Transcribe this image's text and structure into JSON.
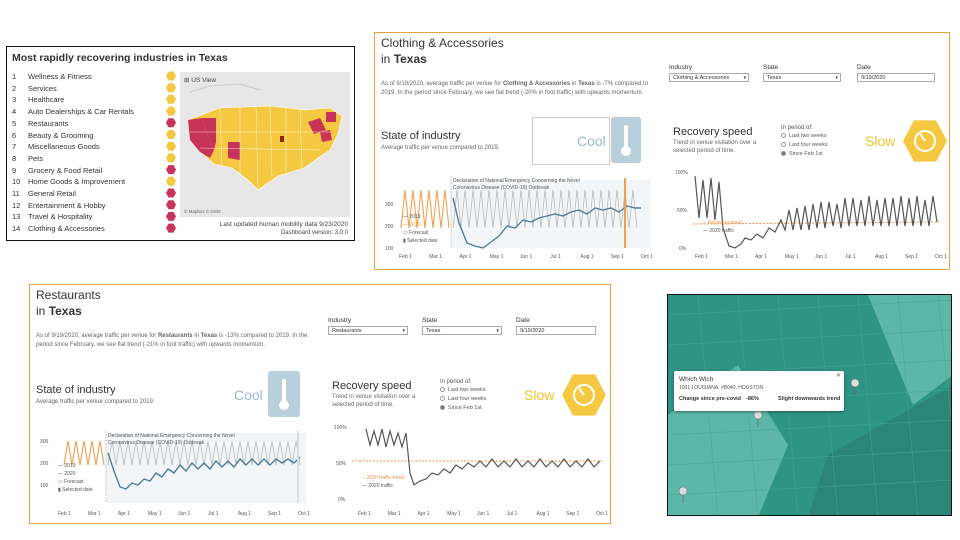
{
  "rank_panel": {
    "title": "Most rapidly recovering industries in Texas",
    "items": [
      {
        "rank": "1",
        "label": "Wellness & Fitness",
        "status": "yellow"
      },
      {
        "rank": "2",
        "label": "Services",
        "status": "yellow"
      },
      {
        "rank": "3",
        "label": "Healthcare",
        "status": "yellow"
      },
      {
        "rank": "4",
        "label": "Auto Dealerships & Car Rentals",
        "status": "yellow"
      },
      {
        "rank": "5",
        "label": "Restaurants",
        "status": "red"
      },
      {
        "rank": "6",
        "label": "Beauty & Grooming",
        "status": "yellow"
      },
      {
        "rank": "7",
        "label": "Miscellaneous Goods",
        "status": "yellow"
      },
      {
        "rank": "8",
        "label": "Pets",
        "status": "yellow"
      },
      {
        "rank": "9",
        "label": "Grocery & Food Retail",
        "status": "red"
      },
      {
        "rank": "10",
        "label": "Home Goods & Improvement",
        "status": "yellow"
      },
      {
        "rank": "11",
        "label": "General Retail",
        "status": "red"
      },
      {
        "rank": "12",
        "label": "Entertainment & Hobby",
        "status": "red"
      },
      {
        "rank": "13",
        "label": "Travel & Hospitality",
        "status": "red"
      },
      {
        "rank": "14",
        "label": "Clothing & Accessories",
        "status": "red"
      }
    ],
    "map_label": "US View",
    "map_credit": "© Mapbox © OSM",
    "updated": "Last updated human mobility data 9/23/2020",
    "version": "Dashboard version: 3.0.0"
  },
  "clothing_panel": {
    "title": "Clothing & Accessories",
    "in_label": "in",
    "state": "Texas",
    "desc_pre": "As of 9/19/2020, average traffic per venue for ",
    "desc_bold1": "Clothing & Accessories",
    "desc_mid": " in ",
    "desc_bold2": "Texas",
    "desc_post": " is -7% compared to 2019. In the period since February, we see flat trend (-20% in foot traffic) with upwards momentum.",
    "filters": {
      "industry_label": "Industry",
      "industry_value": "Clothing & Accessories",
      "state_label": "State",
      "state_value": "Texas",
      "date_label": "Date",
      "date_value": "9/19/2020"
    },
    "state_heading": "State of industry",
    "state_sub": "Average traffic per venue compared to 2019.",
    "cool_word": "Cool",
    "recovery_heading": "Recovery speed",
    "recovery_sub": "Trend in venue visitation over a selected period of time.",
    "period_label": "In period of:",
    "periods": [
      "Last two weeks",
      "Last four weeks",
      "Since Feb 1st"
    ],
    "slow_word": "Slow",
    "annotation": "Declaration of National Emergency Concerning the Novel Coronavirus Disease (COVID-19) Outbreak",
    "legend": [
      "2019",
      "2020",
      "Forecast",
      "Selected date"
    ],
    "x_ticks": [
      "Feb 1",
      "Mar 1",
      "Apr 1",
      "May 1",
      "Jun 1",
      "Jul 1",
      "Aug 1",
      "Sep 1",
      "Oct 1"
    ],
    "left_y_ticks": [
      "300",
      "200",
      "100"
    ],
    "right_y_ticks": [
      "100%",
      "50%",
      "0%"
    ],
    "right_legend": [
      "Recovery trend",
      "2020 traffic"
    ]
  },
  "restaurants_panel": {
    "title": "Restaurants",
    "in_label": "in",
    "state": "Texas",
    "desc_pre": "As of 9/19/2020, average traffic per venue for ",
    "desc_bold1": "Restaurants",
    "desc_mid": " in ",
    "desc_bold2": "Texas",
    "desc_post": " is -13% compared to 2019. In the period since February, we see flat trend (-21% in foot traffic) with upwards momentum.",
    "filters": {
      "industry_label": "Industry",
      "industry_value": "Restaurants",
      "state_label": "State",
      "state_value": "Texas",
      "date_label": "Date",
      "date_value": "9/19/2020"
    },
    "state_heading": "State of industry",
    "state_sub": "Average traffic per venue compared to 2019.",
    "cool_word": "Cool",
    "recovery_heading": "Recovery speed",
    "recovery_sub": "Trend in venue visitation over a selected period of time.",
    "period_label": "In period of:",
    "periods": [
      "Last two weeks",
      "Last four weeks",
      "Since Feb 1st"
    ],
    "slow_word": "Slow",
    "annotation": "Declaration of National Emergency Concerning the Novel Coronavirus Disease (COVID-19) Outbreak",
    "legend": [
      "2019",
      "2020",
      "Forecast",
      "Selected date"
    ],
    "x_ticks": [
      "Feb 1",
      "Mar 1",
      "Apr 1",
      "May 1",
      "Jun 1",
      "Jul 1",
      "Aug 1",
      "Sep 1",
      "Oct 1"
    ],
    "left_y_ticks": [
      "300",
      "200",
      "100"
    ],
    "right_y_ticks": [
      "100%",
      "50%",
      "0%"
    ],
    "right_legend": [
      "2020 traffic trend",
      "2020 traffic"
    ]
  },
  "map_tooltip": {
    "name": "Which Wich",
    "address": "1001 LOUISIANA, #B040, HOUSTON",
    "change_label": "Change since pre-covid",
    "change_value": "-86%",
    "trend": "Slight downwards trend"
  },
  "colors": {
    "accent_orange": "#e8a33c",
    "yellow": "#f5c842",
    "red": "#c8335a",
    "teal_dark": "#2e9586",
    "teal_light": "#5cb7a8",
    "cool_blue": "#b8cfdc",
    "line_dark": "#4f7d98"
  }
}
